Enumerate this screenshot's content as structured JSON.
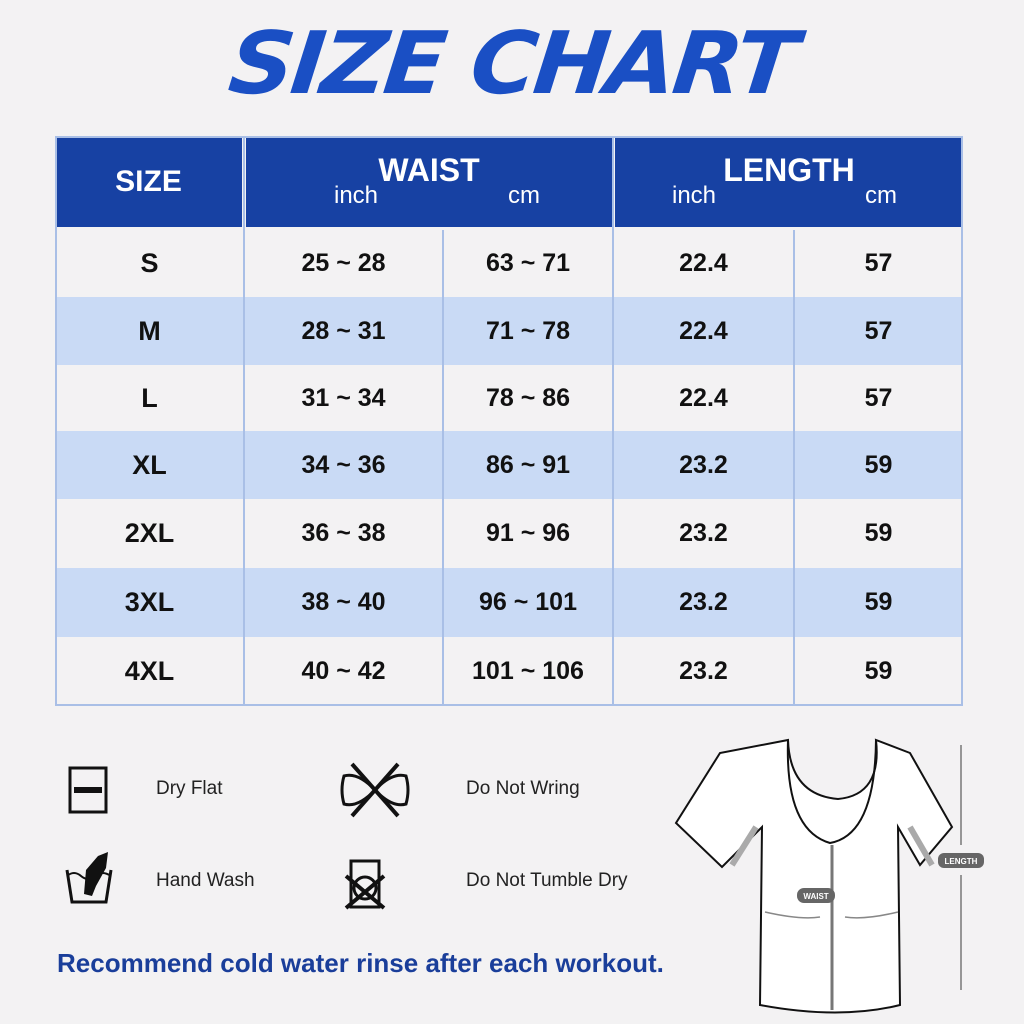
{
  "title": "SIZE CHART",
  "colors": {
    "header": "#1741a3",
    "row_alt": "#c9daf5",
    "row": "#f3f2f3",
    "title": "#1a4fc4"
  },
  "table": {
    "headers": {
      "size": "SIZE",
      "waist": "WAIST",
      "length": "LENGTH",
      "inch": "inch",
      "cm": "cm"
    },
    "rows": [
      {
        "size": "S",
        "waist_inch": "25 ~ 28",
        "waist_cm": "63 ~ 71",
        "length_inch": "22.4",
        "length_cm": "57"
      },
      {
        "size": "M",
        "waist_inch": "28 ~ 31",
        "waist_cm": "71 ~ 78",
        "length_inch": "22.4",
        "length_cm": "57"
      },
      {
        "size": "L",
        "waist_inch": "31 ~ 34",
        "waist_cm": "78 ~ 86",
        "length_inch": "22.4",
        "length_cm": "57"
      },
      {
        "size": "XL",
        "waist_inch": "34 ~ 36",
        "waist_cm": "86 ~ 91",
        "length_inch": "23.2",
        "length_cm": "59"
      },
      {
        "size": "2XL",
        "waist_inch": "36 ~ 38",
        "waist_cm": "91 ~ 96",
        "length_inch": "23.2",
        "length_cm": "59"
      },
      {
        "size": "3XL",
        "waist_inch": "38 ~ 40",
        "waist_cm": "96 ~ 101",
        "length_inch": "23.2",
        "length_cm": "59"
      },
      {
        "size": "4XL",
        "waist_inch": "40 ~ 42",
        "waist_cm": "101 ~ 106",
        "length_inch": "23.2",
        "length_cm": "59"
      }
    ]
  },
  "care": [
    {
      "label": "Dry Flat",
      "icon": "dry-flat-icon"
    },
    {
      "label": "Do Not Wring",
      "icon": "do-not-wring-icon"
    },
    {
      "label": "Hand Wash",
      "icon": "hand-wash-icon"
    },
    {
      "label": "Do Not Tumble Dry",
      "icon": "do-not-tumble-dry-icon"
    }
  ],
  "note": "Recommend cold water rinse after each workout.",
  "diagram": {
    "waist_label": "WAIST",
    "length_label": "LENGTH"
  }
}
